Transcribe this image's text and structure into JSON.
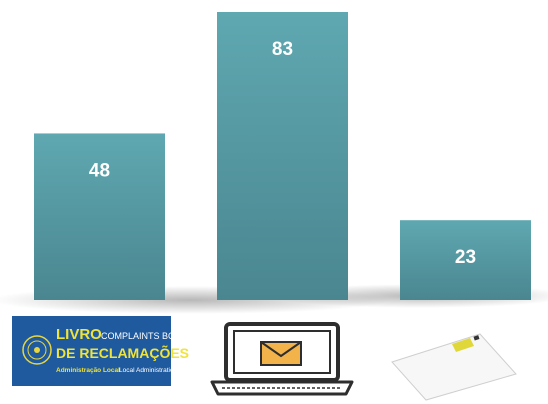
{
  "chart_data": {
    "type": "bar",
    "categories": [
      null,
      null,
      null
    ],
    "values": [
      48,
      83,
      23
    ],
    "color": "#55979f",
    "logo_text": [
      "LIVRO",
      "COMPLAINTS BOOK",
      "DE RECLAMAÇÕES",
      "Administração Local",
      "Local Administration"
    ]
  }
}
